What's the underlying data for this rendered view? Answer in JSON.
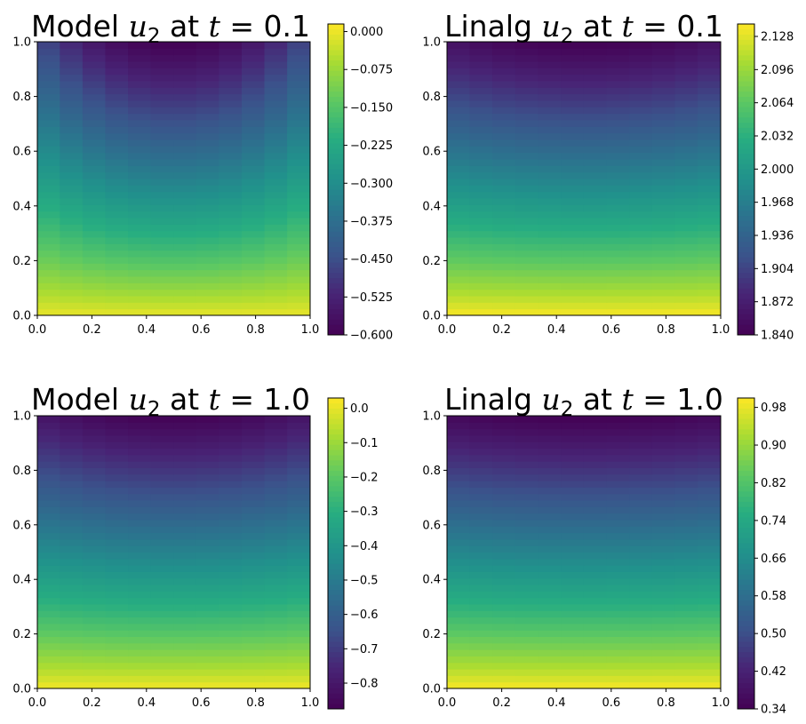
{
  "chart_data": [
    {
      "type": "heatmap",
      "title": {
        "prefix": "Model",
        "var": "u",
        "sub": "2",
        "mid": " at ",
        "tvar": "t",
        "eq": " = ",
        "tval": "0.1"
      },
      "xlabel": "",
      "ylabel": "",
      "xlim": [
        0,
        1
      ],
      "ylim": [
        0,
        1
      ],
      "x_ticks": [
        "0.0",
        "0.2",
        "0.4",
        "0.6",
        "0.8",
        "1.0"
      ],
      "y_ticks": [
        "0.0",
        "0.2",
        "0.4",
        "0.6",
        "0.8",
        "1.0"
      ],
      "colormap": "viridis",
      "colorbar": {
        "min": -0.6,
        "max": 0.015,
        "ticks": [
          "0.000",
          "−0.075",
          "−0.150",
          "−0.225",
          "−0.300",
          "−0.375",
          "−0.450",
          "−0.525",
          "−0.600"
        ]
      },
      "field": {
        "bottom": 0.0,
        "top_center": -0.6,
        "top_edge": -0.45,
        "mid_level": -0.3
      }
    },
    {
      "type": "heatmap",
      "title": {
        "prefix": "Linalg",
        "var": "u",
        "sub": "2",
        "mid": " at ",
        "tvar": "t",
        "eq": " = ",
        "tval": "0.1"
      },
      "xlabel": "",
      "ylabel": "",
      "xlim": [
        0,
        1
      ],
      "ylim": [
        0,
        1
      ],
      "x_ticks": [
        "0.0",
        "0.2",
        "0.4",
        "0.6",
        "0.8",
        "1.0"
      ],
      "y_ticks": [
        "0.0",
        "0.2",
        "0.4",
        "0.6",
        "0.8",
        "1.0"
      ],
      "colormap": "viridis",
      "colorbar": {
        "min": 1.84,
        "max": 2.14,
        "ticks": [
          "2.128",
          "2.096",
          "2.064",
          "2.032",
          "2.000",
          "1.968",
          "1.936",
          "1.904",
          "1.872",
          "1.840"
        ]
      },
      "field": {
        "bottom": 2.14,
        "top_center": 1.84,
        "top_edge": 1.86,
        "mid_level": 1.96
      }
    },
    {
      "type": "heatmap",
      "title": {
        "prefix": "Model",
        "var": "u",
        "sub": "2",
        "mid": " at ",
        "tvar": "t",
        "eq": " = ",
        "tval": "1.0"
      },
      "xlabel": "",
      "ylabel": "",
      "xlim": [
        0,
        1
      ],
      "ylim": [
        0,
        1
      ],
      "x_ticks": [
        "0.0",
        "0.2",
        "0.4",
        "0.6",
        "0.8",
        "1.0"
      ],
      "y_ticks": [
        "0.0",
        "0.2",
        "0.4",
        "0.6",
        "0.8",
        "1.0"
      ],
      "colormap": "viridis",
      "colorbar": {
        "min": -0.875,
        "max": 0.03,
        "ticks": [
          "0.0",
          "−0.1",
          "−0.2",
          "−0.3",
          "−0.4",
          "−0.5",
          "−0.6",
          "−0.7",
          "−0.8"
        ]
      },
      "field": {
        "bottom": 0.02,
        "top_center": -0.87,
        "top_edge": -0.8,
        "mid_level": -0.45
      }
    },
    {
      "type": "heatmap",
      "title": {
        "prefix": "Linalg",
        "var": "u",
        "sub": "2",
        "mid": " at ",
        "tvar": "t",
        "eq": " = ",
        "tval": "1.0"
      },
      "xlabel": "",
      "ylabel": "",
      "xlim": [
        0,
        1
      ],
      "ylim": [
        0,
        1
      ],
      "x_ticks": [
        "0.0",
        "0.2",
        "0.4",
        "0.6",
        "0.8",
        "1.0"
      ],
      "y_ticks": [
        "0.0",
        "0.2",
        "0.4",
        "0.6",
        "0.8",
        "1.0"
      ],
      "colormap": "viridis",
      "colorbar": {
        "min": 0.34,
        "max": 1.0,
        "ticks": [
          "0.98",
          "0.90",
          "0.82",
          "0.74",
          "0.66",
          "0.58",
          "0.50",
          "0.42",
          "0.34"
        ]
      },
      "field": {
        "bottom": 1.0,
        "top_center": 0.34,
        "top_edge": 0.36,
        "mid_level": 0.62
      }
    }
  ]
}
